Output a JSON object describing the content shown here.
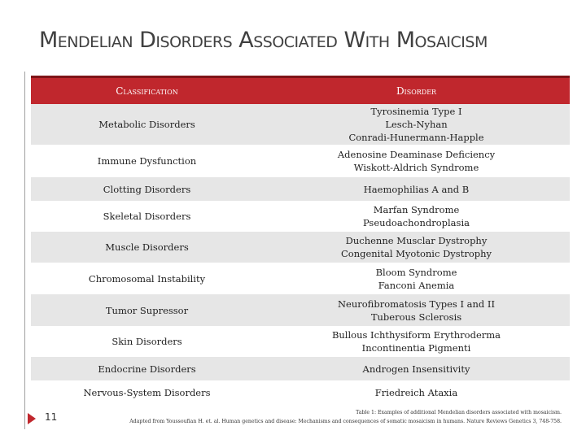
{
  "header": {
    "title": "Mendelian Disorders Associated With Mosaicism"
  },
  "table": {
    "columns": [
      "Classification",
      "Disorder"
    ],
    "rows": [
      [
        "Metabolic Disorders",
        [
          "Tyrosinemia Type I",
          "Lesch-Nyhan",
          "Conradi-Hunermann-Happle"
        ]
      ],
      [
        "Immune Dysfunction",
        [
          "Adenosine Deaminase Deficiency",
          "Wiskott-Aldrich Syndrome"
        ]
      ],
      [
        "Clotting Disorders",
        [
          "Haemophilias A and B"
        ]
      ],
      [
        "Skeletal Disorders",
        [
          "Marfan Syndrome",
          "Pseudoachondroplasia"
        ]
      ],
      [
        "Muscle Disorders",
        [
          "Duchenne Musclar Dystrophy",
          "Congenital Myotonic Dystrophy"
        ]
      ],
      [
        "Chromosomal Instability",
        [
          "Bloom Syndrome",
          "Fanconi Anemia"
        ]
      ],
      [
        "Tumor Supressor",
        [
          "Neurofibromatosis Types I and II",
          "Tuberous Sclerosis"
        ]
      ],
      [
        "Skin Disorders",
        [
          "Bullous Ichthysiform Erythroderma",
          "Incontinentia Pigmenti"
        ]
      ],
      [
        "Endocrine Disorders",
        [
          "Androgen Insensitivity"
        ]
      ],
      [
        "Nervous-System Disorders",
        [
          "Friedreich Ataxia"
        ]
      ]
    ]
  },
  "footer": {
    "page_number": "11",
    "caption": [
      "Table 1: Examples of additional Mendelian disorders associated with mosaicism.",
      "Adapted from Youssoufian H. et. al. Human genetics and disease: Mechanisms and consequences of somatic mosaicism in humans. Nature Reviews Genetics 3, 748-758."
    ]
  }
}
